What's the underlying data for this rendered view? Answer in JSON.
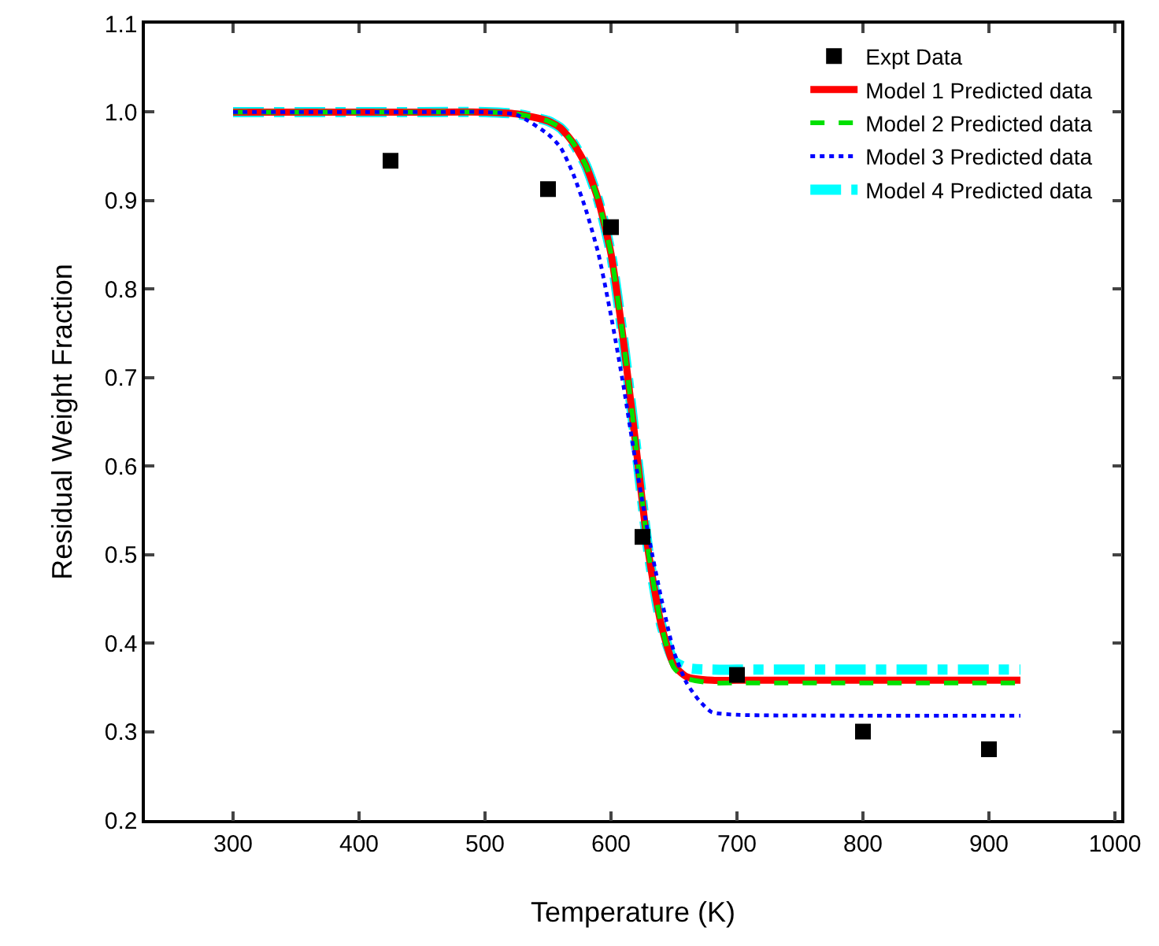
{
  "chart_data": {
    "type": "line",
    "xlabel": "Temperature (K)",
    "ylabel": "Residual Weight Fraction",
    "xlim": [
      230,
      1005
    ],
    "xticks": [
      300,
      400,
      500,
      600,
      700,
      800,
      900,
      1000
    ],
    "ylim": [
      0.2,
      1.1
    ],
    "yticks": [
      0.2,
      0.3,
      0.4,
      0.5,
      0.6,
      0.7,
      0.8,
      0.9,
      {
        "value": 1,
        "label": "1.0"
      },
      1.1
    ],
    "grid": false,
    "legend": "top right",
    "series": [
      {
        "name": "Expt Data",
        "type": "scatter",
        "marker": "square",
        "color": "#000000",
        "x": [
          425,
          550,
          600,
          625,
          700,
          800,
          900
        ],
        "values": [
          0.945,
          0.913,
          0.87,
          0.52,
          0.364,
          0.3,
          0.28
        ]
      },
      {
        "name": "Model 1 Predicted data",
        "color": "#ff0000",
        "line_style": "solid",
        "x": [
          300,
          350,
          400,
          450,
          500,
          525,
          550,
          560,
          570,
          580,
          590,
          600,
          610,
          620,
          630,
          640,
          650,
          660,
          680,
          700,
          800,
          925
        ],
        "values": [
          1,
          1,
          1,
          1,
          1,
          0.998,
          0.99,
          0.982,
          0.965,
          0.94,
          0.9,
          0.84,
          0.74,
          0.62,
          0.5,
          0.42,
          0.375,
          0.362,
          0.358,
          0.358,
          0.358,
          0.358
        ]
      },
      {
        "name": "Model 2 Predicted data",
        "color": "#00e000",
        "line_style": "dashed",
        "x": [
          300,
          350,
          400,
          450,
          500,
          525,
          550,
          560,
          570,
          580,
          590,
          600,
          610,
          620,
          630,
          640,
          650,
          660,
          680,
          700,
          800,
          925
        ],
        "values": [
          1,
          1,
          1,
          1,
          1,
          0.998,
          0.99,
          0.982,
          0.965,
          0.94,
          0.9,
          0.84,
          0.74,
          0.62,
          0.5,
          0.42,
          0.372,
          0.36,
          0.355,
          0.355,
          0.355,
          0.355
        ]
      },
      {
        "name": "Model 3 Predicted data",
        "color": "#0000ff",
        "line_style": "dotted",
        "x": [
          300,
          350,
          400,
          450,
          500,
          525,
          550,
          560,
          570,
          580,
          590,
          600,
          610,
          620,
          630,
          640,
          650,
          660,
          670,
          680,
          700,
          800,
          925
        ],
        "values": [
          1,
          1,
          1,
          1,
          1,
          0.997,
          0.975,
          0.96,
          0.93,
          0.89,
          0.84,
          0.77,
          0.69,
          0.6,
          0.52,
          0.45,
          0.39,
          0.355,
          0.335,
          0.322,
          0.319,
          0.318,
          0.318
        ]
      },
      {
        "name": "Model 4 Predicted data",
        "color": "#00ffff",
        "line_style": "dashdot",
        "x": [
          300,
          350,
          400,
          450,
          500,
          525,
          550,
          560,
          570,
          580,
          590,
          600,
          610,
          620,
          630,
          640,
          650,
          660,
          680,
          700,
          800,
          925
        ],
        "values": [
          1,
          1,
          1,
          1,
          1,
          0.998,
          0.99,
          0.982,
          0.965,
          0.94,
          0.9,
          0.84,
          0.74,
          0.62,
          0.5,
          0.42,
          0.38,
          0.372,
          0.37,
          0.37,
          0.37,
          0.37
        ]
      }
    ]
  }
}
